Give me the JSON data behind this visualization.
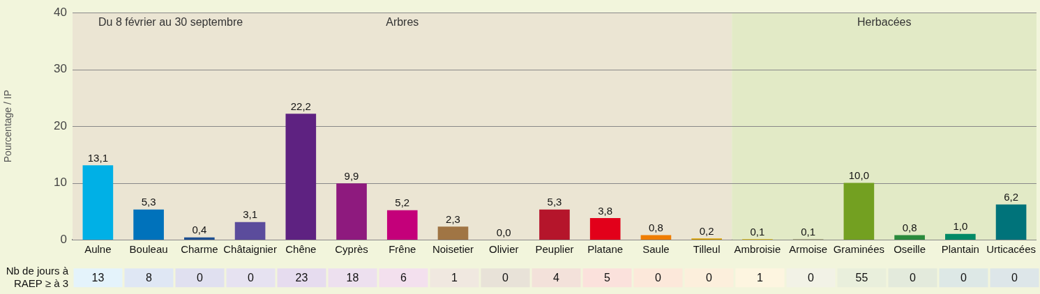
{
  "chart_data": [
    {
      "type": "bar",
      "subtitle": "Du 8 février au 30 septembre",
      "ylabel": "Pourcentage / IP",
      "categories": [
        "Aulne",
        "Bouleau",
        "Charme",
        "Châtaignier",
        "Chêne",
        "Cyprès",
        "Frêne",
        "Noisetier",
        "Olivier",
        "Peuplier",
        "Platane",
        "Saule",
        "Tilleul",
        "Ambroisie",
        "Armoise",
        "Graminées",
        "Oseille",
        "Plantain",
        "Urticacées"
      ],
      "colors": [
        "#00b0e6",
        "#0072bb",
        "#1d4f91",
        "#5b4c9c",
        "#5e2281",
        "#8e1a7e",
        "#c4007a",
        "#a07544",
        "#8a8a6a",
        "#b5152b",
        "#e2001a",
        "#ef7d00",
        "#d8a000",
        "#e6c000",
        "#a0a070",
        "#73a021",
        "#2a8a3c",
        "#008a66",
        "#00737a"
      ],
      "values": [
        13.1,
        5.3,
        0.4,
        3.1,
        22.2,
        9.9,
        5.2,
        2.3,
        0.0,
        5.3,
        3.8,
        0.8,
        0.2,
        0.1,
        0.1,
        10.0,
        0.8,
        1.0,
        6.2
      ],
      "value_labels": [
        "13,1",
        "5,3",
        "0,4",
        "3,1",
        "22,2",
        "9,9",
        "5,2",
        "2,3",
        "0,0",
        "5,3",
        "3,8",
        "0,8",
        "0,2",
        "0,1",
        "0,1",
        "10,0",
        "0,8",
        "1,0",
        "6,2"
      ],
      "ylim": [
        0,
        40
      ],
      "yticks": [
        0,
        10,
        20,
        30,
        40
      ],
      "grid": "y",
      "bands": [
        {
          "axis": "x",
          "from": "Aulne",
          "to": "Tilleul",
          "label": "Arbres",
          "color": "#ebe5d3"
        },
        {
          "axis": "x",
          "from": "Ambroisie",
          "to": "Urticacées",
          "label": "Herbacées",
          "color": "#e2eac6"
        }
      ]
    },
    {
      "type": "other",
      "ylabel": "Nb de jours à RAEP ≥ à 3",
      "data_labels": true,
      "values": [
        13,
        8,
        0,
        0,
        23,
        18,
        6,
        1,
        0,
        4,
        5,
        0,
        0,
        1,
        0,
        55,
        0,
        0,
        0
      ],
      "colors": [
        "#e4f3fb",
        "#dfe7f4",
        "#e0e0f0",
        "#e6e2f1",
        "#e6dcef",
        "#ede0ef",
        "#f3e0ee",
        "#f0e8e0",
        "#e8e2d8",
        "#f3e1da",
        "#fbe1dc",
        "#fce8da",
        "#fcefdc",
        "#fdf5e0",
        "#f2f2e6",
        "#e9efdc",
        "#e3eadc",
        "#dde8e6",
        "#dde6e9"
      ]
    }
  ]
}
